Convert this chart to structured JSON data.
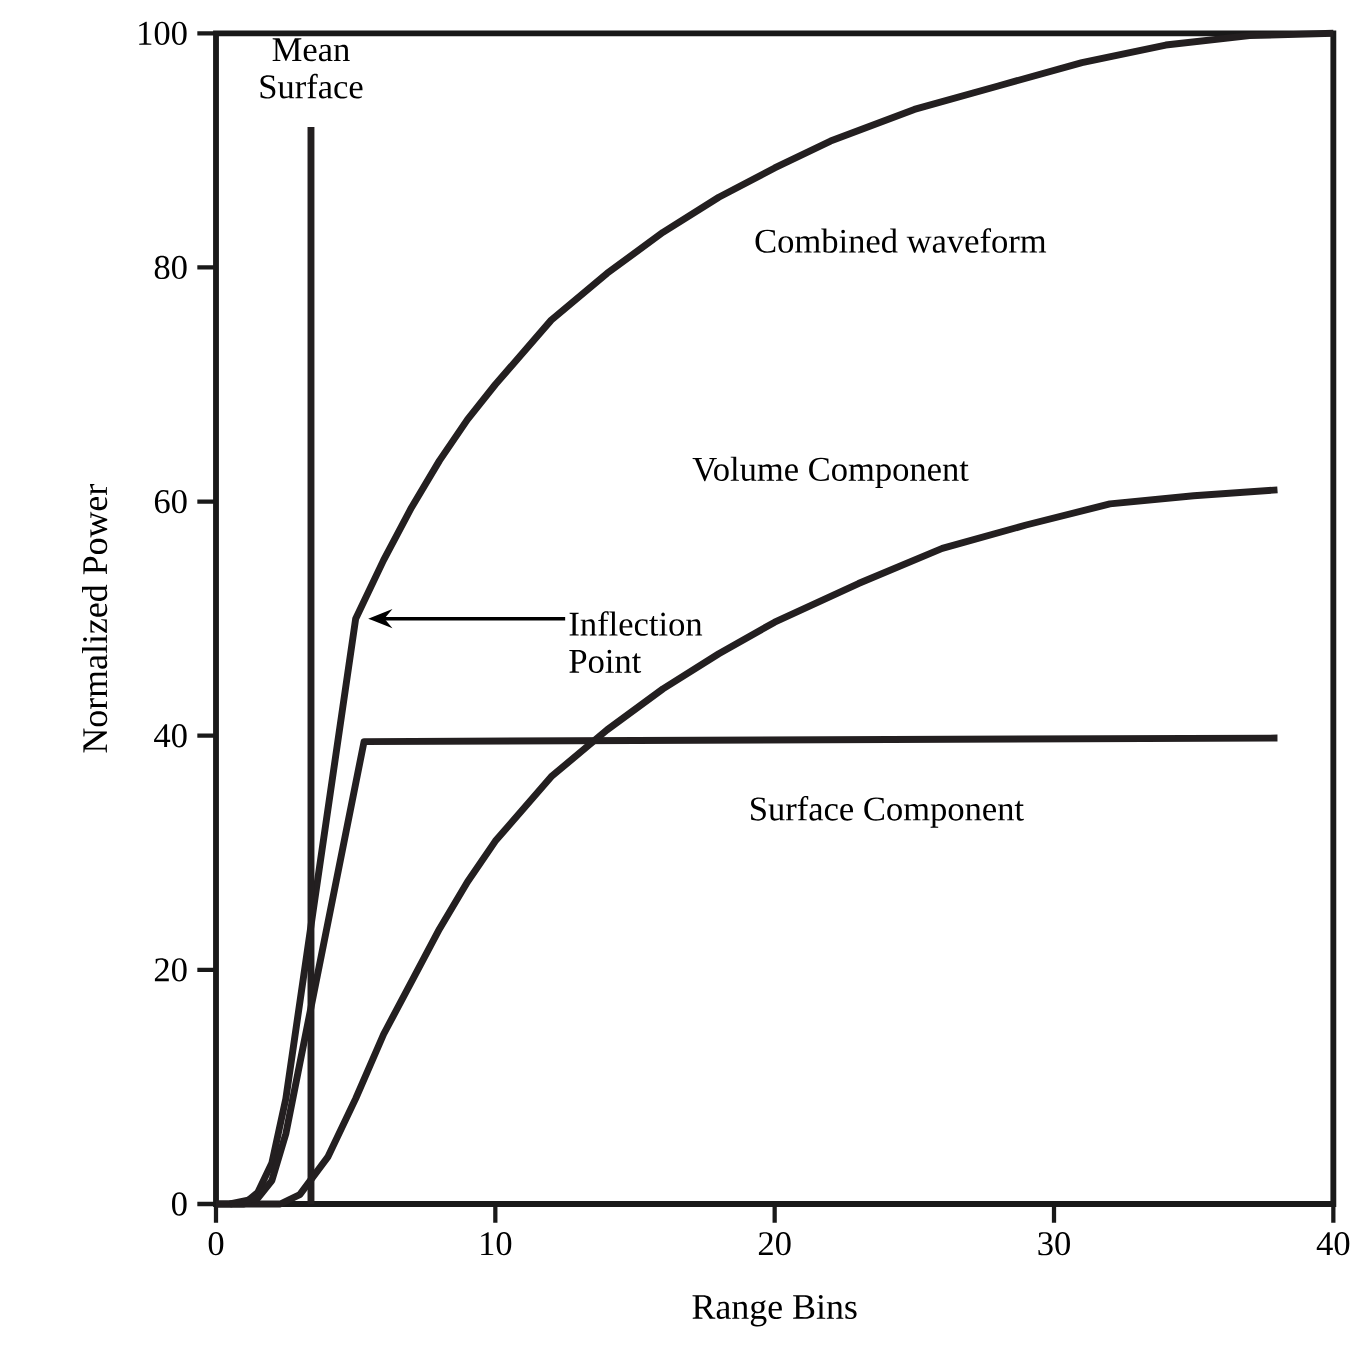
{
  "chart_data": {
    "type": "line",
    "xlabel": "Range Bins",
    "ylabel": "Normalized Power",
    "xlim": [
      0,
      40
    ],
    "ylim": [
      0,
      100
    ],
    "xticks": [
      0,
      10,
      20,
      30,
      40
    ],
    "yticks": [
      0,
      20,
      40,
      60,
      80,
      100
    ],
    "series": [
      {
        "name": "Combined waveform",
        "color": "#231f20",
        "x": [
          0,
          1,
          1.5,
          2,
          2.5,
          5,
          6,
          7,
          8,
          9,
          10,
          12,
          14,
          16,
          18,
          20,
          22,
          25,
          28,
          31,
          34,
          37,
          40
        ],
        "values": [
          0,
          0,
          1,
          3.5,
          9,
          50,
          55,
          59.5,
          63.5,
          67,
          70,
          75.5,
          79.5,
          83,
          86,
          88.5,
          90.8,
          93.5,
          95.5,
          97.5,
          99,
          99.8,
          100
        ]
      },
      {
        "name": "Volume Component",
        "color": "#231f20",
        "x": [
          0,
          2.3,
          3,
          4,
          5,
          6,
          7,
          8,
          9,
          10,
          12,
          14,
          16,
          18,
          20,
          23,
          26,
          29,
          32,
          35,
          38
        ],
        "values": [
          0,
          0,
          0.8,
          4,
          9,
          14.5,
          19,
          23.5,
          27.5,
          31,
          36.5,
          40.5,
          44,
          47,
          49.7,
          53,
          56,
          58,
          59.8,
          60.5,
          61
        ]
      },
      {
        "name": "Surface Component",
        "color": "#231f20",
        "x": [
          0.5,
          1.5,
          2,
          2.5,
          3,
          5.3,
          38
        ],
        "values": [
          0,
          0.5,
          2,
          6,
          12,
          39.5,
          39.8
        ]
      },
      {
        "name": "Mean Surface",
        "color": "#231f20",
        "x": [
          3.4,
          3.4
        ],
        "values": [
          0,
          92
        ]
      }
    ],
    "annotations": [
      "Inflection Point"
    ]
  }
}
